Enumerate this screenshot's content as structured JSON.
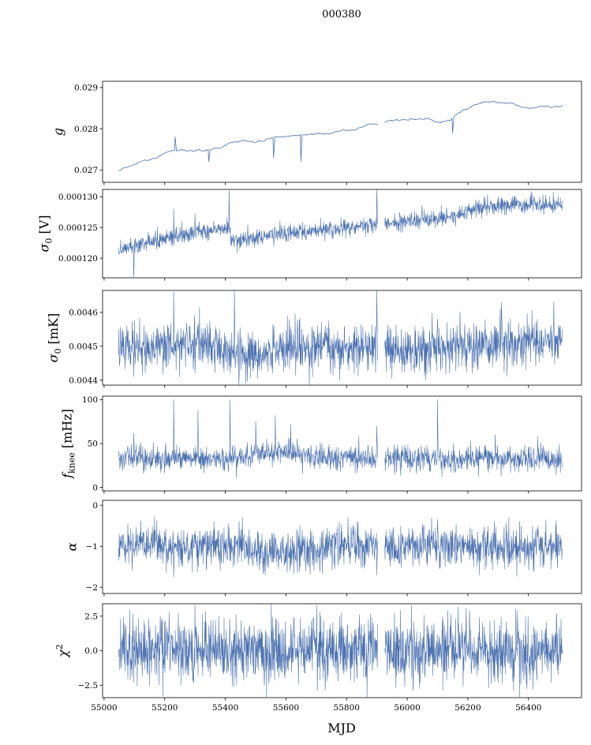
{
  "figure": {
    "title": "000380",
    "xlabel": "MJD"
  },
  "chart_data": {
    "type": "line",
    "title": "000380",
    "xlabel": "MJD",
    "series_color": "#4c72b0",
    "xlim": [
      54995,
      56575
    ],
    "x_ticks": [
      55000,
      55200,
      55400,
      55600,
      55800,
      56000,
      56200,
      56400
    ],
    "x_tick_labels": [
      "55000",
      "55200",
      "55400",
      "55600",
      "55800",
      "56000",
      "56200",
      "56400"
    ],
    "x_data_range": [
      55048,
      56512
    ],
    "data_gaps": [
      [
        55903,
        55926
      ]
    ],
    "panels": [
      {
        "name": "g",
        "ylabel_parts": [
          {
            "t": "g",
            "k": "it"
          }
        ],
        "ylim": [
          0.0267,
          0.02915
        ],
        "yticks": [
          0.027,
          0.028,
          0.029
        ],
        "ytick_labels": [
          "0.027",
          "0.028",
          "0.029"
        ],
        "trend": [
          [
            55048,
            0.02695
          ],
          [
            55080,
            0.0271
          ],
          [
            55150,
            0.0273
          ],
          [
            55250,
            0.02748
          ],
          [
            55350,
            0.0275
          ],
          [
            55420,
            0.02765
          ],
          [
            55520,
            0.0277
          ],
          [
            55620,
            0.02785
          ],
          [
            55720,
            0.0279
          ],
          [
            55820,
            0.02795
          ],
          [
            55900,
            0.0281
          ],
          [
            55980,
            0.0282
          ],
          [
            56060,
            0.02825
          ],
          [
            56140,
            0.0282
          ],
          [
            56180,
            0.0285
          ],
          [
            56260,
            0.02865
          ],
          [
            56340,
            0.0286
          ],
          [
            56420,
            0.0285
          ],
          [
            56512,
            0.0285
          ]
        ],
        "noise": 0.00012,
        "smooth": 9,
        "spikes": [
          {
            "x": 55235,
            "y": 0.0278
          },
          {
            "x": 55345,
            "y": 0.0272
          },
          {
            "x": 55560,
            "y": 0.0273
          },
          {
            "x": 55650,
            "y": 0.0272
          },
          {
            "x": 56150,
            "y": 0.0279
          }
        ],
        "points": 700,
        "line_width": 0.8
      },
      {
        "name": "sigma0-V",
        "ylabel_parts": [
          {
            "t": "σ",
            "k": "it"
          },
          {
            "t": "0",
            "k": "sub"
          },
          {
            "t": " [V]",
            "k": "rm"
          }
        ],
        "ylim": [
          0.0001168,
          0.0001312
        ],
        "yticks": [
          0.00012,
          0.000125,
          0.00013
        ],
        "ytick_labels": [
          "0.000120",
          "0.000125",
          "0.000130"
        ],
        "trend": [
          [
            55048,
            0.0001212
          ],
          [
            55150,
            0.0001225
          ],
          [
            55250,
            0.0001237
          ],
          [
            55350,
            0.0001245
          ],
          [
            55415,
            0.0001252
          ],
          [
            55418,
            0.0001228
          ],
          [
            55550,
            0.0001238
          ],
          [
            55700,
            0.0001245
          ],
          [
            55850,
            0.0001252
          ],
          [
            55950,
            0.0001258
          ],
          [
            56050,
            0.0001262
          ],
          [
            56150,
            0.0001268
          ],
          [
            56230,
            0.0001282
          ],
          [
            56320,
            0.0001288
          ],
          [
            56420,
            0.0001287
          ],
          [
            56512,
            0.0001287
          ]
        ],
        "noise": 7e-07,
        "smooth": 0,
        "spikes": [
          {
            "x": 55098,
            "y": 0.000116
          },
          {
            "x": 55230,
            "y": 0.000128
          },
          {
            "x": 55300,
            "y": 0.0001272
          },
          {
            "x": 55412,
            "y": 0.0001312
          },
          {
            "x": 55560,
            "y": 0.000122
          },
          {
            "x": 55900,
            "y": 0.0001325
          }
        ],
        "points": 1500,
        "line_width": 0.6
      },
      {
        "name": "sigma0-mK",
        "ylabel_parts": [
          {
            "t": "σ",
            "k": "it"
          },
          {
            "t": "0",
            "k": "sub"
          },
          {
            "t": " [mK]",
            "k": "rm"
          }
        ],
        "ylim": [
          0.004385,
          0.004665
        ],
        "yticks": [
          0.0044,
          0.0045,
          0.0046
        ],
        "ytick_labels": [
          "0.0044",
          "0.0045",
          "0.0046"
        ],
        "trend": [
          [
            55048,
            0.00449
          ],
          [
            55200,
            0.0045
          ],
          [
            55350,
            0.00451
          ],
          [
            55430,
            0.00448
          ],
          [
            55500,
            0.00447
          ],
          [
            55600,
            0.00449
          ],
          [
            55700,
            0.0045
          ],
          [
            56000,
            0.00449
          ],
          [
            56200,
            0.0045
          ],
          [
            56350,
            0.00451
          ],
          [
            56512,
            0.00452
          ]
        ],
        "noise": 3.5e-05,
        "smooth": 0,
        "spikes": [
          {
            "x": 55098,
            "y": 0.00441
          },
          {
            "x": 55230,
            "y": 0.00466
          },
          {
            "x": 55300,
            "y": 0.00442
          },
          {
            "x": 55430,
            "y": 0.00472
          },
          {
            "x": 55560,
            "y": 0.00456
          },
          {
            "x": 55900,
            "y": 0.00471
          },
          {
            "x": 56100,
            "y": 0.00458
          }
        ],
        "points": 1500,
        "line_width": 0.6
      },
      {
        "name": "fknee",
        "ylabel_parts": [
          {
            "t": "f",
            "k": "it"
          },
          {
            "t": "knee",
            "k": "sub"
          },
          {
            "t": " [mHz]",
            "k": "rm"
          }
        ],
        "ylim": [
          -4,
          104
        ],
        "yticks": [
          0,
          50,
          100
        ],
        "ytick_labels": [
          "0",
          "50",
          "100"
        ],
        "trend": [
          [
            55048,
            33
          ],
          [
            55450,
            33
          ],
          [
            55520,
            40
          ],
          [
            55650,
            38
          ],
          [
            55720,
            33
          ],
          [
            56512,
            33
          ]
        ],
        "noise": 7,
        "smooth": 0,
        "spikes": [
          {
            "x": 55098,
            "y": 62
          },
          {
            "x": 55230,
            "y": 100
          },
          {
            "x": 55310,
            "y": 88
          },
          {
            "x": 55415,
            "y": 100
          },
          {
            "x": 55500,
            "y": 75
          },
          {
            "x": 55565,
            "y": 82
          },
          {
            "x": 55615,
            "y": 72
          },
          {
            "x": 55840,
            "y": 58
          },
          {
            "x": 55900,
            "y": 70
          },
          {
            "x": 56100,
            "y": 100
          },
          {
            "x": 56290,
            "y": 60
          },
          {
            "x": 56430,
            "y": 58
          }
        ],
        "points": 1500,
        "line_width": 0.6
      },
      {
        "name": "alpha",
        "ylabel_parts": [
          {
            "t": "α",
            "k": "it"
          }
        ],
        "ylim": [
          -2.15,
          0.12
        ],
        "yticks": [
          0,
          -1,
          -2
        ],
        "ytick_labels": [
          "0",
          "−1",
          "−2"
        ],
        "trend": [
          [
            55048,
            -1.0
          ],
          [
            55440,
            -1.0
          ],
          [
            55520,
            -1.18
          ],
          [
            55640,
            -1.12
          ],
          [
            55720,
            -1.0
          ],
          [
            56512,
            -1.0
          ]
        ],
        "noise": 0.24,
        "smooth": 0,
        "spikes": [
          {
            "x": 55230,
            "y": -1.75
          },
          {
            "x": 55900,
            "y": -1.7
          },
          {
            "x": 56100,
            "y": -0.35
          }
        ],
        "points": 1500,
        "line_width": 0.6
      },
      {
        "name": "chi2",
        "ylabel_parts": [
          {
            "t": "χ",
            "k": "it"
          },
          {
            "t": "2",
            "k": "sup"
          }
        ],
        "ylim": [
          -3.4,
          3.4
        ],
        "yticks": [
          2.5,
          0,
          -2.5
        ],
        "ytick_labels": [
          "2.5",
          "0.0",
          "−2.5"
        ],
        "trend": [
          [
            55048,
            0
          ],
          [
            56512,
            0
          ]
        ],
        "noise": 1.15,
        "smooth": 0,
        "spikes": [
          {
            "x": 55300,
            "y": 3.3
          }
        ],
        "points": 1600,
        "line_width": 0.6
      }
    ]
  }
}
